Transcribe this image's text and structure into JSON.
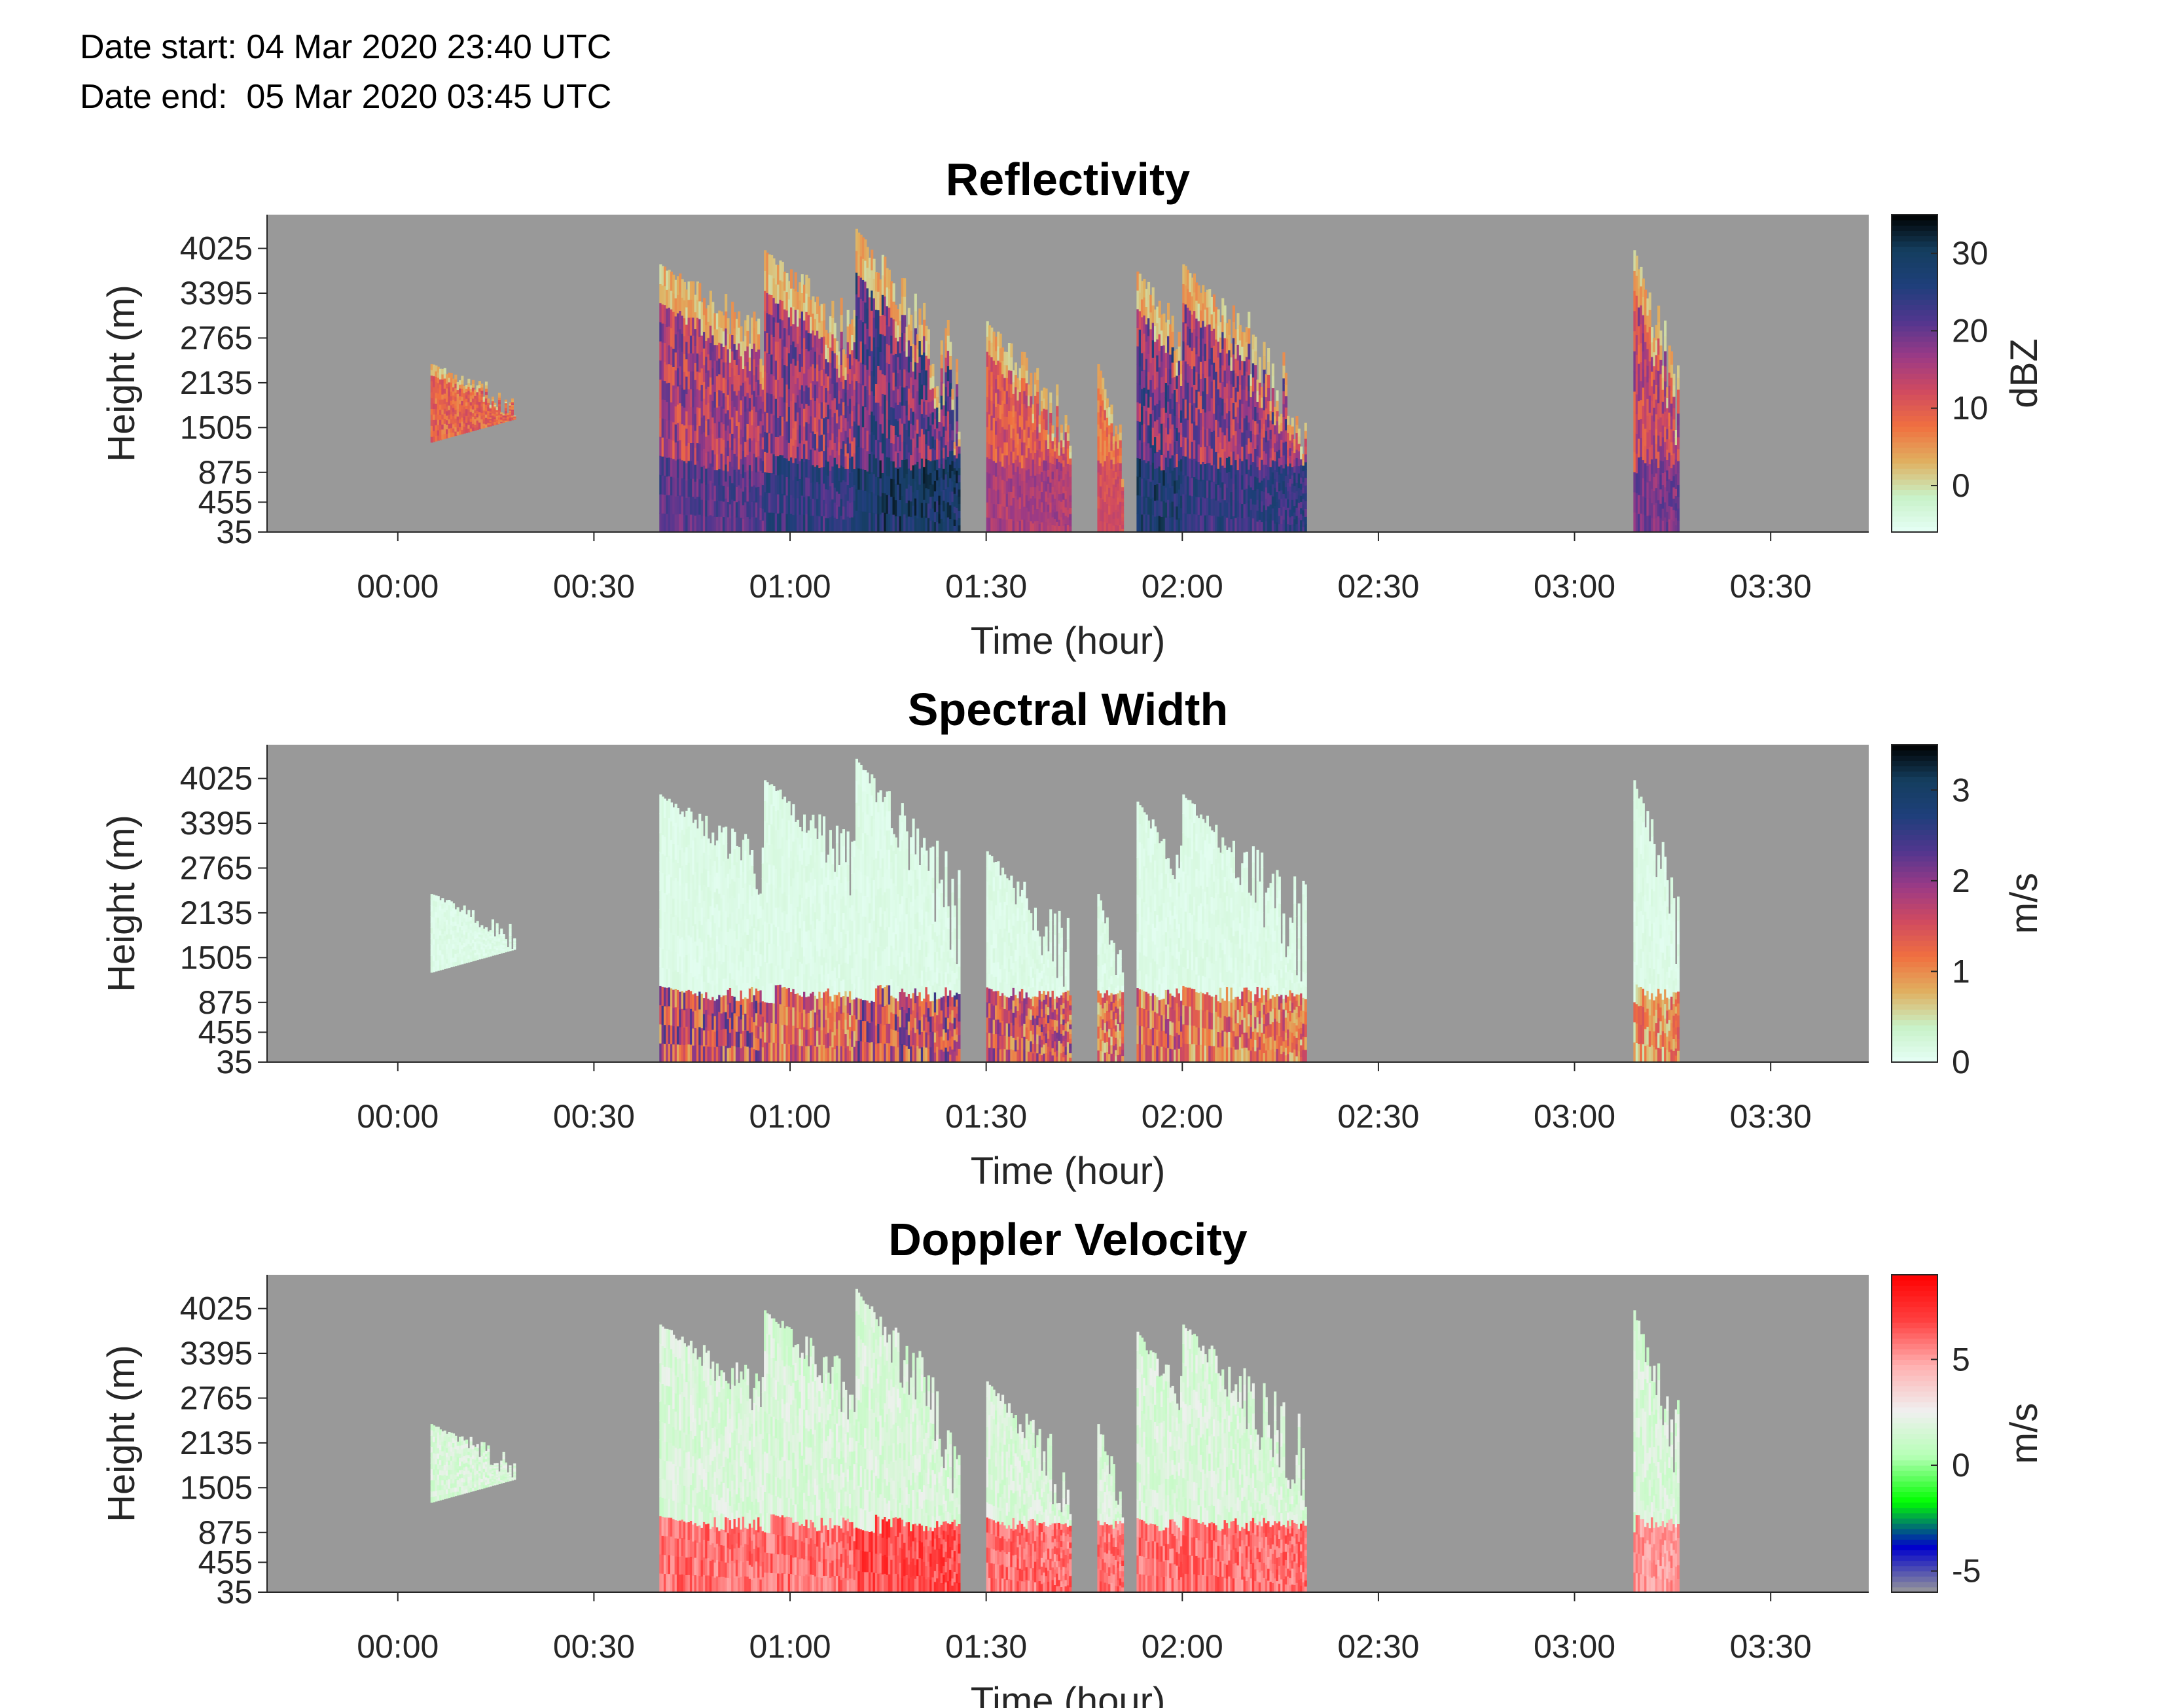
{
  "header": {
    "date_start": "Date start: 04 Mar 2020 23:40 UTC",
    "date_end": "Date end:  05 Mar 2020 03:45 UTC"
  },
  "colors": {
    "no_data": "#999999",
    "reflectivity_ramp": [
      "#e6fff6",
      "#c8f2c8",
      "#e0b060",
      "#f07040",
      "#d04a60",
      "#9a3a86",
      "#50368f",
      "#1e3f7a",
      "#143e5e",
      "#000000"
    ],
    "width_ramp": [
      "#e6fff6",
      "#c8f2c8",
      "#e0b060",
      "#f07040",
      "#d04a60",
      "#9a3a86",
      "#50368f",
      "#1e3f7a",
      "#143e5e",
      "#000000"
    ],
    "velocity_ramp": [
      "#999999",
      "#0000cc",
      "#00ff00",
      "#b6ffb6",
      "#f0f0f0",
      "#ffb0b0",
      "#ff4040",
      "#ff0000"
    ]
  },
  "chart_data": [
    {
      "type": "heatmap",
      "title": "Reflectivity",
      "xlabel": "Time (hour)",
      "ylabel": "Height (m)",
      "colorbar_label": "dBZ",
      "colorbar_ticks": [
        "0",
        "10",
        "20",
        "30"
      ],
      "colorbar_values": [
        0,
        10,
        20,
        30
      ],
      "colorbar_range": [
        -6,
        35
      ],
      "xlim_minutes": [
        -20,
        225
      ],
      "x_ticks": [
        "00:00",
        "00:30",
        "01:00",
        "01:30",
        "02:00",
        "02:30",
        "03:00",
        "03:30"
      ],
      "x_tick_minutes": [
        0,
        30,
        60,
        90,
        120,
        150,
        180,
        210
      ],
      "ylim": [
        35,
        4500
      ],
      "y_ticks": [
        "35",
        "455",
        "875",
        "1505",
        "2135",
        "2765",
        "3395",
        "4025"
      ],
      "y_tick_values": [
        35,
        455,
        875,
        1505,
        2135,
        2765,
        3395,
        4025
      ],
      "echoes": [
        {
          "start": 5,
          "end": 18,
          "top": 2400,
          "base": 1300,
          "peak": 15
        },
        {
          "start": 40,
          "end": 70,
          "top": 3800,
          "base": 35,
          "peak": 25
        },
        {
          "start": 56,
          "end": 80,
          "top": 4000,
          "base": 35,
          "peak": 28
        },
        {
          "start": 70,
          "end": 86,
          "top": 4300,
          "base": 35,
          "peak": 33
        },
        {
          "start": 90,
          "end": 103,
          "top": 3000,
          "base": 35,
          "peak": 18
        },
        {
          "start": 107,
          "end": 111,
          "top": 2400,
          "base": 35,
          "peak": 14
        },
        {
          "start": 113,
          "end": 127,
          "top": 3700,
          "base": 35,
          "peak": 32
        },
        {
          "start": 120,
          "end": 139,
          "top": 3800,
          "base": 35,
          "peak": 28
        },
        {
          "start": 189,
          "end": 196,
          "top": 4000,
          "base": 35,
          "peak": 22
        }
      ]
    },
    {
      "type": "heatmap",
      "title": "Spectral Width",
      "xlabel": "Time (hour)",
      "ylabel": "Height (m)",
      "colorbar_label": "m/s",
      "colorbar_ticks": [
        "0",
        "1",
        "2",
        "3"
      ],
      "colorbar_values": [
        0,
        1,
        2,
        3
      ],
      "colorbar_range": [
        0,
        3.5
      ],
      "xlim_minutes": [
        -20,
        225
      ],
      "x_ticks": [
        "00:00",
        "00:30",
        "01:00",
        "01:30",
        "02:00",
        "02:30",
        "03:00",
        "03:30"
      ],
      "x_tick_minutes": [
        0,
        30,
        60,
        90,
        120,
        150,
        180,
        210
      ],
      "ylim": [
        35,
        4500
      ],
      "y_ticks": [
        "35",
        "455",
        "875",
        "1505",
        "2135",
        "2765",
        "3395",
        "4025"
      ],
      "y_tick_values": [
        35,
        455,
        875,
        1505,
        2135,
        2765,
        3395,
        4025
      ],
      "echoes": [
        {
          "start": 5,
          "end": 18,
          "top": 2400,
          "base": 1300,
          "peak": 0.2
        },
        {
          "start": 40,
          "end": 70,
          "top": 3800,
          "base": 35,
          "peak": 2.5
        },
        {
          "start": 56,
          "end": 80,
          "top": 4000,
          "base": 35,
          "peak": 2.0
        },
        {
          "start": 70,
          "end": 86,
          "top": 4300,
          "base": 35,
          "peak": 2.5
        },
        {
          "start": 90,
          "end": 103,
          "top": 3000,
          "base": 35,
          "peak": 2.2
        },
        {
          "start": 107,
          "end": 111,
          "top": 2400,
          "base": 35,
          "peak": 1.8
        },
        {
          "start": 113,
          "end": 127,
          "top": 3700,
          "base": 35,
          "peak": 2.0
        },
        {
          "start": 120,
          "end": 139,
          "top": 3800,
          "base": 35,
          "peak": 1.8
        },
        {
          "start": 189,
          "end": 196,
          "top": 4000,
          "base": 35,
          "peak": 1.5
        }
      ]
    },
    {
      "type": "heatmap",
      "title": "Doppler Velocity",
      "xlabel": "Time (hour)",
      "ylabel": "Height (m)",
      "colorbar_label": "m/s",
      "colorbar_ticks": [
        "-5",
        "0",
        "5"
      ],
      "colorbar_values": [
        -5,
        0,
        5
      ],
      "colorbar_range": [
        -6,
        9
      ],
      "xlim_minutes": [
        -20,
        225
      ],
      "x_ticks": [
        "00:00",
        "00:30",
        "01:00",
        "01:30",
        "02:00",
        "02:30",
        "03:00",
        "03:30"
      ],
      "x_tick_minutes": [
        0,
        30,
        60,
        90,
        120,
        150,
        180,
        210
      ],
      "ylim": [
        35,
        4500
      ],
      "y_ticks": [
        "35",
        "455",
        "875",
        "1505",
        "2135",
        "2765",
        "3395",
        "4025"
      ],
      "y_tick_values": [
        35,
        455,
        875,
        1505,
        2135,
        2765,
        3395,
        4025
      ],
      "echoes": [
        {
          "start": 5,
          "end": 18,
          "top": 2400,
          "base": 1300,
          "peak": 1.5
        },
        {
          "start": 40,
          "end": 70,
          "top": 3800,
          "base": 35,
          "peak": 7
        },
        {
          "start": 56,
          "end": 80,
          "top": 4000,
          "base": 35,
          "peak": 7
        },
        {
          "start": 70,
          "end": 86,
          "top": 4300,
          "base": 35,
          "peak": 8
        },
        {
          "start": 90,
          "end": 103,
          "top": 3000,
          "base": 35,
          "peak": 7
        },
        {
          "start": 107,
          "end": 111,
          "top": 2400,
          "base": 35,
          "peak": 7
        },
        {
          "start": 113,
          "end": 127,
          "top": 3700,
          "base": 35,
          "peak": 7
        },
        {
          "start": 120,
          "end": 139,
          "top": 3800,
          "base": 35,
          "peak": 7
        },
        {
          "start": 189,
          "end": 196,
          "top": 4000,
          "base": 35,
          "peak": 6
        }
      ]
    }
  ]
}
